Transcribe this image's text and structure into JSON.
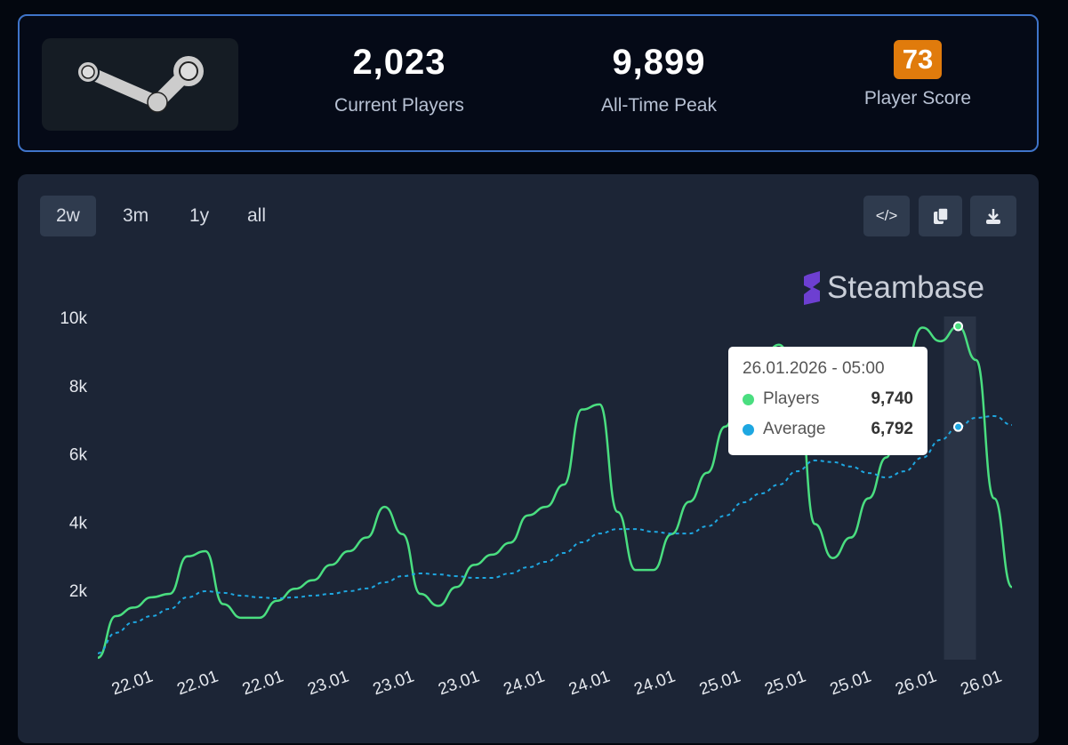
{
  "stats": {
    "logo": "Steam",
    "current_players": {
      "value": "2,023",
      "label": "Current Players"
    },
    "all_time_peak": {
      "value": "9,899",
      "label": "All-Time Peak"
    },
    "player_score": {
      "value": "73",
      "label": "Player Score"
    }
  },
  "ranges": [
    "2w",
    "3m",
    "1y",
    "all"
  ],
  "active_range": "2w",
  "toolbar": {
    "embed_icon": "code-icon",
    "copy_icon": "copy-icon",
    "download_icon": "download-icon"
  },
  "brand": "Steambase",
  "tooltip": {
    "title": "26.01.2026 - 05:00",
    "players_label": "Players",
    "players_value": "9,740",
    "average_label": "Average",
    "average_value": "6,792"
  },
  "colors": {
    "players": "#4ade80",
    "average": "#1ea7e1",
    "accent": "#3f74c9",
    "score": "#e07b0c"
  },
  "chart_data": {
    "type": "line",
    "ylim": [
      0,
      10000
    ],
    "y_ticks": [
      "2k",
      "4k",
      "6k",
      "8k",
      "10k"
    ],
    "x_ticks": [
      "22.01",
      "22.01",
      "22.01",
      "23.01",
      "23.01",
      "23.01",
      "24.01",
      "24.01",
      "24.01",
      "25.01",
      "25.01",
      "25.01",
      "26.01",
      "26.01"
    ],
    "hover_index": 48,
    "series": [
      {
        "name": "Players",
        "values": [
          30,
          1250,
          1500,
          1800,
          1900,
          3000,
          3150,
          1600,
          1200,
          1200,
          1700,
          2050,
          2300,
          2750,
          3150,
          3550,
          4450,
          3650,
          1900,
          1550,
          2100,
          2750,
          3050,
          3400,
          4200,
          4450,
          5100,
          7300,
          7450,
          4300,
          2600,
          2600,
          3650,
          4600,
          5450,
          6800,
          8100,
          8750,
          9200,
          8350,
          3950,
          2950,
          3550,
          4700,
          5900,
          8600,
          9700,
          9300,
          9740,
          8750,
          4700,
          2100
        ]
      },
      {
        "name": "Average",
        "values": [
          160,
          760,
          1070,
          1250,
          1460,
          1800,
          1980,
          1930,
          1850,
          1800,
          1770,
          1800,
          1850,
          1900,
          1980,
          2060,
          2240,
          2420,
          2500,
          2470,
          2420,
          2370,
          2370,
          2500,
          2680,
          2840,
          3100,
          3410,
          3670,
          3800,
          3800,
          3720,
          3670,
          3670,
          3880,
          4190,
          4580,
          4840,
          5100,
          5490,
          5810,
          5760,
          5630,
          5440,
          5310,
          5490,
          5890,
          6410,
          6792,
          7060,
          7110,
          6850
        ]
      }
    ]
  }
}
